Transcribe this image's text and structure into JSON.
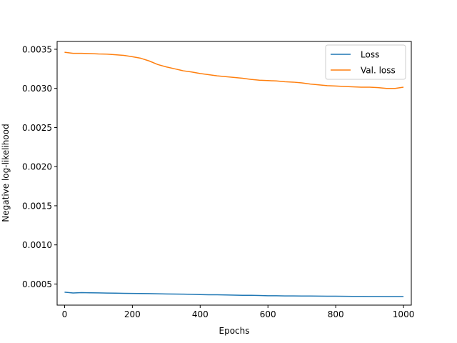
{
  "chart_data": {
    "type": "line",
    "title": "",
    "xlabel": "Epochs",
    "ylabel": "Negative log-likelihood",
    "xlim": [
      -22,
      1023
    ],
    "ylim": [
      0.00023,
      0.0036
    ],
    "xticks": [
      0,
      200,
      400,
      600,
      800,
      1000
    ],
    "xtick_labels": [
      "0",
      "200",
      "400",
      "600",
      "800",
      "1000"
    ],
    "yticks": [
      0.0005,
      0.001,
      0.0015,
      0.002,
      0.0025,
      0.003,
      0.0035
    ],
    "ytick_labels": [
      "0.0005",
      "0.0010",
      "0.0015",
      "0.0020",
      "0.0025",
      "0.0030",
      "0.0035"
    ],
    "grid": false,
    "legend_position": "top-right",
    "series": [
      {
        "name": "Loss",
        "color": "#1f77b4",
        "x": [
          0,
          25,
          50,
          75,
          100,
          125,
          150,
          175,
          200,
          225,
          250,
          275,
          300,
          325,
          350,
          375,
          400,
          425,
          450,
          475,
          500,
          525,
          550,
          575,
          600,
          625,
          650,
          675,
          700,
          725,
          750,
          775,
          800,
          825,
          850,
          875,
          900,
          925,
          950,
          975,
          1000
        ],
        "values": [
          0.000395,
          0.000385,
          0.00039,
          0.000388,
          0.000386,
          0.000384,
          0.000383,
          0.000381,
          0.00038,
          0.000378,
          0.000377,
          0.000375,
          0.000373,
          0.000372,
          0.00037,
          0.000368,
          0.000365,
          0.000363,
          0.000362,
          0.00036,
          0.000358,
          0.000356,
          0.000355,
          0.000353,
          0.00035,
          0.00035,
          0.000348,
          0.000348,
          0.000347,
          0.000346,
          0.000345,
          0.000344,
          0.000344,
          0.000343,
          0.000342,
          0.000342,
          0.000341,
          0.000341,
          0.00034,
          0.00034,
          0.000339
        ]
      },
      {
        "name": "Val. loss",
        "color": "#ff7f0e",
        "x": [
          0,
          25,
          50,
          75,
          100,
          125,
          150,
          175,
          200,
          225,
          250,
          275,
          300,
          325,
          350,
          375,
          400,
          425,
          450,
          475,
          500,
          525,
          550,
          575,
          600,
          625,
          650,
          675,
          700,
          725,
          750,
          775,
          800,
          825,
          850,
          875,
          900,
          925,
          950,
          975,
          1000
        ],
        "values": [
          0.003462,
          0.003448,
          0.003448,
          0.003445,
          0.00344,
          0.003438,
          0.00343,
          0.003422,
          0.003405,
          0.003385,
          0.00335,
          0.003305,
          0.003275,
          0.00325,
          0.003225,
          0.00321,
          0.00319,
          0.003175,
          0.00316,
          0.00315,
          0.00314,
          0.00313,
          0.003115,
          0.003105,
          0.0031,
          0.003095,
          0.003085,
          0.00308,
          0.00307,
          0.003055,
          0.003045,
          0.003035,
          0.00303,
          0.003025,
          0.00302,
          0.003015,
          0.003015,
          0.00301,
          0.003,
          0.003,
          0.003015
        ]
      }
    ]
  }
}
